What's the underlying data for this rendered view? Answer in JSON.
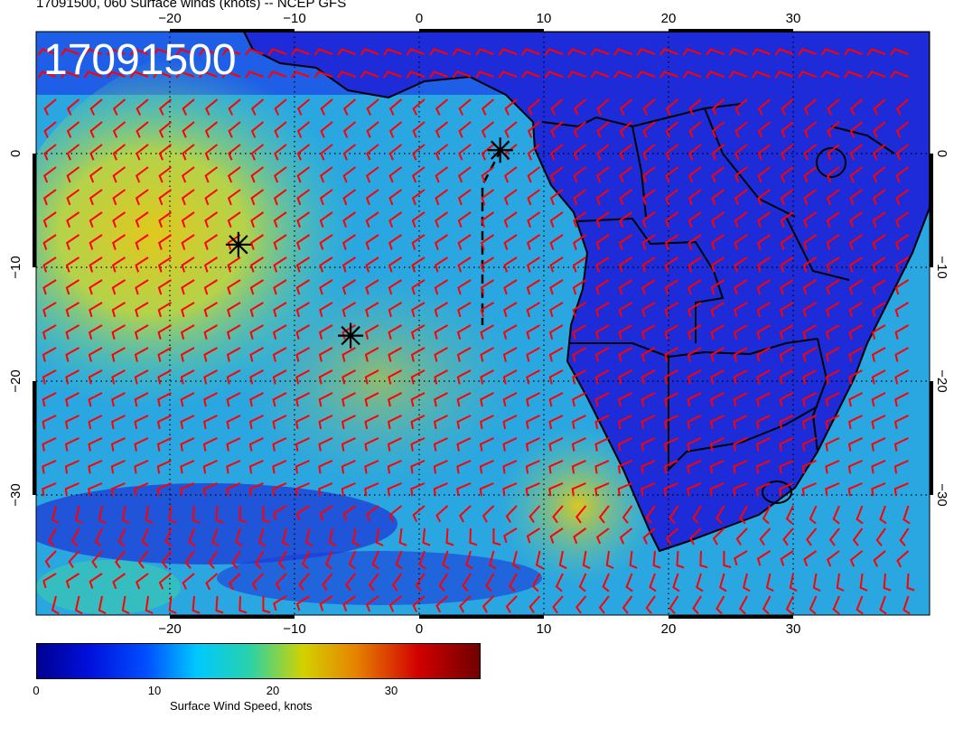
{
  "header": {
    "title": "17091500, 060 Surface winds (knots) -- NCEP GFS"
  },
  "map": {
    "date_label": "17091500",
    "lon_labels_top": [
      "−20",
      "−10",
      "0",
      "10",
      "20",
      "30"
    ],
    "lon_labels_bottom": [
      "−20",
      "−10",
      "0",
      "10",
      "20",
      "30"
    ],
    "lat_labels_left": [
      "0",
      "−10",
      "−20",
      "−30"
    ],
    "lat_labels_right": [
      "0",
      "−10",
      "−20",
      "−30"
    ],
    "lon_range": [
      -31,
      41
    ],
    "lat_range": [
      -40,
      10
    ],
    "grid": "dotted, every 10 degrees",
    "markers": [
      {
        "name": "star",
        "lon": -14.5,
        "lat": -8
      },
      {
        "name": "star",
        "lon": -5.5,
        "lat": -16
      },
      {
        "name": "star",
        "lon": 6.5,
        "lat": 0.3
      }
    ],
    "barb_color": "#ff0000",
    "land_color": "#1d2cd8"
  },
  "colorbar": {
    "ticks": [
      "0",
      "10",
      "20",
      "30"
    ],
    "tick_values": [
      0,
      10,
      20,
      30
    ],
    "max": 36,
    "title": "Surface Wind Speed, knots",
    "colors": [
      "#00008f",
      "#0020ff",
      "#00c8ff",
      "#20d2b4",
      "#d2d200",
      "#e68200",
      "#d20000",
      "#6e0000"
    ]
  }
}
